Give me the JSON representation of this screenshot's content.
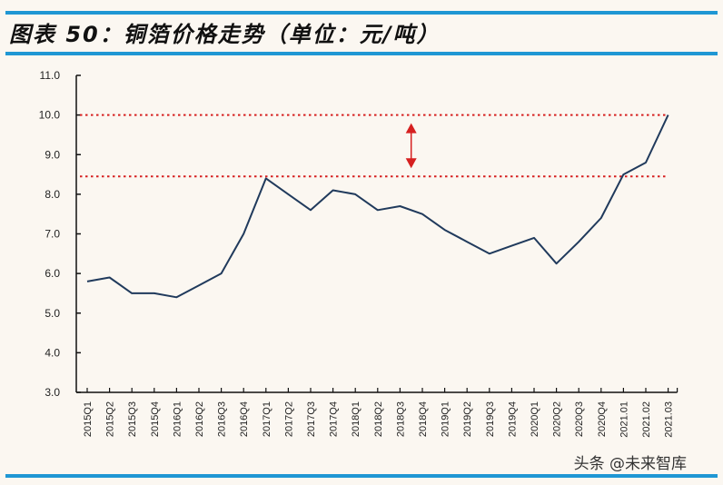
{
  "header": {
    "title": "图表 50：铜箔价格走势（单位：元/吨）",
    "rule_color": "#1f97d4"
  },
  "watermark": "头条 @未来智库",
  "colors": {
    "line": "#203a5c",
    "reference": "#d62020",
    "axis": "#111111"
  },
  "chart_data": {
    "type": "line",
    "title": "图表 50：铜箔价格走势（单位：元/吨）",
    "xlabel": "",
    "ylabel": "",
    "ylim": [
      3.0,
      11.0
    ],
    "yticks": [
      "3.0",
      "4.0",
      "5.0",
      "6.0",
      "7.0",
      "8.0",
      "9.0",
      "10.0",
      "11.0"
    ],
    "grid": false,
    "legend": null,
    "categories": [
      "2015Q1",
      "2015Q2",
      "2015Q3",
      "2015Q4",
      "2016Q1",
      "2016Q2",
      "2016Q3",
      "2016Q4",
      "2017Q1",
      "2017Q2",
      "2017Q3",
      "2017Q4",
      "2018Q1",
      "2018Q2",
      "2018Q3",
      "2018Q4",
      "2019Q1",
      "2019Q2",
      "2019Q3",
      "2019Q4",
      "2020Q1",
      "2020Q2",
      "2020Q3",
      "2020Q4",
      "2021.01",
      "2021.02",
      "2021.03"
    ],
    "series": [
      {
        "name": "铜箔价格",
        "values": [
          5.8,
          5.9,
          5.5,
          5.5,
          5.4,
          5.7,
          6.0,
          7.0,
          8.4,
          8.0,
          7.6,
          8.1,
          8.0,
          7.6,
          7.7,
          7.5,
          7.1,
          6.8,
          6.5,
          6.7,
          6.9,
          6.25,
          6.8,
          7.4,
          8.5,
          8.8,
          10.0
        ]
      }
    ],
    "annotations": [
      {
        "type": "hline",
        "style": "dotted",
        "y": 10.0,
        "color": "#d62020"
      },
      {
        "type": "hline",
        "style": "dotted",
        "y": 8.45,
        "color": "#d62020"
      },
      {
        "type": "double-arrow",
        "from_y": 8.45,
        "to_y": 10.0,
        "x_between": [
          "2018Q3",
          "2018Q4"
        ],
        "color": "#d62020"
      }
    ]
  }
}
